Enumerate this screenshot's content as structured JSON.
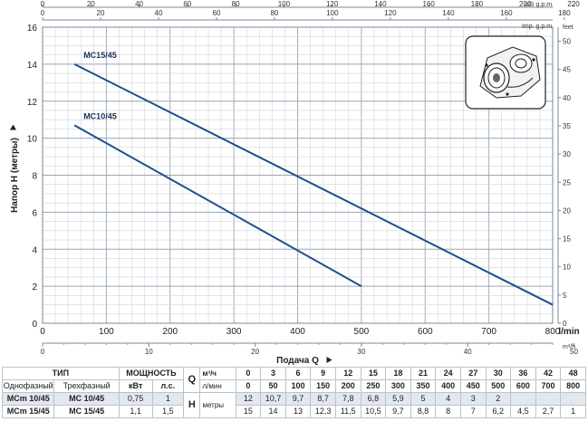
{
  "chart_data": {
    "type": "line",
    "xlabel": "Подача Q",
    "ylabel": "Напор H (метры)",
    "xlim": [
      0,
      800
    ],
    "ylim": [
      0,
      16
    ],
    "x_unit": "l/min",
    "y_right_unit": "feet",
    "grid": true,
    "x_ticks": [
      0,
      100,
      200,
      300,
      400,
      500,
      600,
      700,
      800
    ],
    "y_ticks": [
      0,
      2,
      4,
      6,
      8,
      10,
      12,
      14,
      16
    ],
    "secondary_axes": {
      "us_gpm": {
        "label": "US g.p.m.",
        "ticks": [
          0,
          20,
          40,
          60,
          80,
          100,
          120,
          140,
          160,
          180,
          200,
          220
        ]
      },
      "imp_gpm": {
        "label": "Imp. g.p.m.",
        "ticks": [
          0,
          20,
          40,
          60,
          80,
          100,
          120,
          140,
          160,
          180
        ]
      },
      "m3h": {
        "label": "m³/h",
        "ticks": [
          0,
          10,
          20,
          30,
          40,
          50
        ]
      },
      "feet": {
        "label": "feet",
        "ticks": [
          0,
          5,
          10,
          15,
          20,
          25,
          30,
          35,
          40,
          45,
          50
        ]
      }
    },
    "series": [
      {
        "name": "MC15/45",
        "color": "#1f4e8c",
        "x": [
          50,
          800
        ],
        "y": [
          14,
          1
        ]
      },
      {
        "name": "MC10/45",
        "color": "#1f4e8c",
        "x": [
          50,
          500
        ],
        "y": [
          10.7,
          2
        ]
      }
    ]
  },
  "table": {
    "header": {
      "tip": "ТИП",
      "moshchnost": "МОЩНОСТЬ",
      "q_label": "Q",
      "h_label": "H",
      "m3h_unit": "м³/ч",
      "lmin_unit": "л/мин",
      "meters_unit": "метры"
    },
    "sub_header": {
      "single_phase": "Однофазный",
      "three_phase": "Трехфазный",
      "kw": "кВт",
      "hp": "л.с."
    },
    "q_m3h": [
      "0",
      "3",
      "6",
      "9",
      "12",
      "15",
      "18",
      "21",
      "24",
      "27",
      "30",
      "36",
      "42",
      "48"
    ],
    "q_lmin": [
      "0",
      "50",
      "100",
      "150",
      "200",
      "250",
      "300",
      "350",
      "400",
      "450",
      "500",
      "600",
      "700",
      "800"
    ],
    "rows": [
      {
        "single": "MCm 10/45",
        "three": "MC 10/45",
        "kw": "0,75",
        "hp": "1",
        "h": [
          "12",
          "10,7",
          "9,7",
          "8,7",
          "7,8",
          "6,8",
          "5,9",
          "5",
          "4",
          "3",
          "2",
          "",
          "",
          ""
        ]
      },
      {
        "single": "MCm 15/45",
        "three": "MC 15/45",
        "kw": "1,1",
        "hp": "1,5",
        "h": [
          "15",
          "14",
          "13",
          "12,3",
          "11,5",
          "10,5",
          "9,7",
          "8,8",
          "8",
          "7",
          "6,2",
          "4,5",
          "2,7",
          "1"
        ]
      }
    ]
  }
}
